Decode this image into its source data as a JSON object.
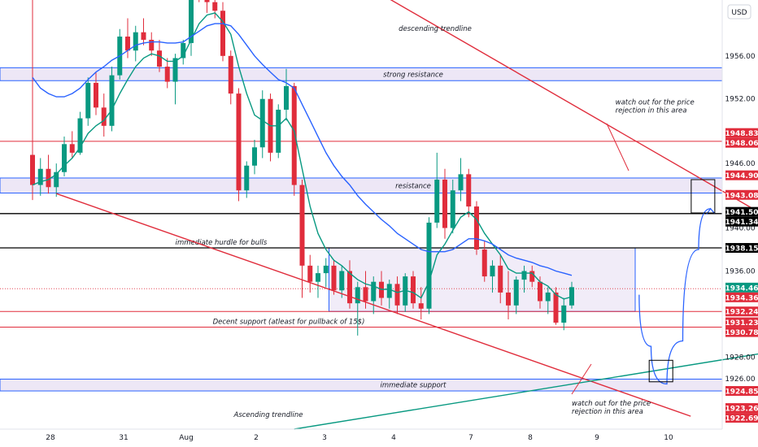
{
  "currency": "USD",
  "chart_data": {
    "type": "candlestick",
    "x_ticks": [
      "28",
      "31",
      "Aug",
      "2",
      "3",
      "4",
      "7",
      "8",
      "9",
      "10"
    ],
    "y_ticks": [
      "1956.00",
      "1952.00",
      "1948.00",
      "1946.00",
      "1940.00",
      "1936.00",
      "1928.00",
      "1926.00"
    ],
    "ylim": [
      1921.3,
      1961.2
    ],
    "grid": false,
    "candles": [
      {
        "o": 1946.8,
        "h": 1961.5,
        "l": 1942.6,
        "c": 1944.0
      },
      {
        "o": 1944.0,
        "h": 1946.5,
        "l": 1943.0,
        "c": 1945.5
      },
      {
        "o": 1945.5,
        "h": 1946.8,
        "l": 1943.2,
        "c": 1943.8
      },
      {
        "o": 1943.8,
        "h": 1946.0,
        "l": 1942.9,
        "c": 1945.2
      },
      {
        "o": 1945.2,
        "h": 1948.5,
        "l": 1944.8,
        "c": 1947.8
      },
      {
        "o": 1947.8,
        "h": 1949.0,
        "l": 1946.5,
        "c": 1947.0
      },
      {
        "o": 1947.0,
        "h": 1950.8,
        "l": 1946.8,
        "c": 1950.2
      },
      {
        "o": 1950.2,
        "h": 1954.0,
        "l": 1949.5,
        "c": 1953.5
      },
      {
        "o": 1953.5,
        "h": 1954.5,
        "l": 1950.5,
        "c": 1951.2
      },
      {
        "o": 1951.2,
        "h": 1952.5,
        "l": 1948.5,
        "c": 1949.5
      },
      {
        "o": 1949.5,
        "h": 1955.0,
        "l": 1949.0,
        "c": 1954.2
      },
      {
        "o": 1954.2,
        "h": 1958.5,
        "l": 1953.8,
        "c": 1957.8
      },
      {
        "o": 1957.8,
        "h": 1959.5,
        "l": 1955.8,
        "c": 1956.5
      },
      {
        "o": 1956.5,
        "h": 1958.8,
        "l": 1955.5,
        "c": 1958.2
      },
      {
        "o": 1958.2,
        "h": 1959.5,
        "l": 1957.0,
        "c": 1957.5
      },
      {
        "o": 1957.5,
        "h": 1958.2,
        "l": 1956.0,
        "c": 1956.5
      },
      {
        "o": 1956.5,
        "h": 1957.5,
        "l": 1954.5,
        "c": 1955.0
      },
      {
        "o": 1955.0,
        "h": 1955.8,
        "l": 1953.0,
        "c": 1953.6
      },
      {
        "o": 1953.6,
        "h": 1956.2,
        "l": 1951.5,
        "c": 1955.8
      },
      {
        "o": 1955.8,
        "h": 1957.5,
        "l": 1955.2,
        "c": 1957.2
      },
      {
        "o": 1957.2,
        "h": 1963.0,
        "l": 1956.0,
        "c": 1962.5
      },
      {
        "o": 1962.5,
        "h": 1964.0,
        "l": 1961.0,
        "c": 1961.5
      },
      {
        "o": 1961.5,
        "h": 1962.5,
        "l": 1960.0,
        "c": 1961.0
      },
      {
        "o": 1961.0,
        "h": 1962.5,
        "l": 1959.5,
        "c": 1960.2
      },
      {
        "o": 1960.2,
        "h": 1961.0,
        "l": 1955.5,
        "c": 1956.0
      },
      {
        "o": 1956.0,
        "h": 1956.5,
        "l": 1951.5,
        "c": 1952.5
      },
      {
        "o": 1952.5,
        "h": 1953.0,
        "l": 1942.5,
        "c": 1943.5
      },
      {
        "o": 1943.5,
        "h": 1946.2,
        "l": 1942.8,
        "c": 1945.8
      },
      {
        "o": 1945.8,
        "h": 1948.2,
        "l": 1945.0,
        "c": 1947.5
      },
      {
        "o": 1947.5,
        "h": 1952.8,
        "l": 1946.5,
        "c": 1952.0
      },
      {
        "o": 1952.0,
        "h": 1952.5,
        "l": 1946.2,
        "c": 1947.0
      },
      {
        "o": 1947.0,
        "h": 1951.5,
        "l": 1946.5,
        "c": 1951.0
      },
      {
        "o": 1951.0,
        "h": 1954.8,
        "l": 1950.0,
        "c": 1953.2
      },
      {
        "o": 1953.2,
        "h": 1953.5,
        "l": 1943.0,
        "c": 1944.0
      },
      {
        "o": 1944.0,
        "h": 1944.5,
        "l": 1933.5,
        "c": 1936.5
      },
      {
        "o": 1936.5,
        "h": 1937.5,
        "l": 1934.0,
        "c": 1935.0
      },
      {
        "o": 1935.0,
        "h": 1936.5,
        "l": 1933.5,
        "c": 1935.8
      },
      {
        "o": 1935.8,
        "h": 1937.2,
        "l": 1934.5,
        "c": 1936.5
      },
      {
        "o": 1936.5,
        "h": 1937.0,
        "l": 1933.8,
        "c": 1934.2
      },
      {
        "o": 1934.2,
        "h": 1936.5,
        "l": 1933.5,
        "c": 1936.0
      },
      {
        "o": 1936.0,
        "h": 1937.0,
        "l": 1932.5,
        "c": 1933.0
      },
      {
        "o": 1933.0,
        "h": 1935.0,
        "l": 1930.0,
        "c": 1934.5
      },
      {
        "o": 1934.5,
        "h": 1936.0,
        "l": 1932.5,
        "c": 1933.2
      },
      {
        "o": 1933.2,
        "h": 1935.5,
        "l": 1932.0,
        "c": 1935.0
      },
      {
        "o": 1935.0,
        "h": 1936.0,
        "l": 1932.8,
        "c": 1933.5
      },
      {
        "o": 1933.5,
        "h": 1935.2,
        "l": 1932.5,
        "c": 1934.8
      },
      {
        "o": 1934.8,
        "h": 1935.5,
        "l": 1932.0,
        "c": 1932.8
      },
      {
        "o": 1932.8,
        "h": 1935.8,
        "l": 1932.2,
        "c": 1935.5
      },
      {
        "o": 1935.5,
        "h": 1936.0,
        "l": 1932.5,
        "c": 1933.0
      },
      {
        "o": 1933.0,
        "h": 1934.5,
        "l": 1931.5,
        "c": 1932.5
      },
      {
        "o": 1932.5,
        "h": 1941.0,
        "l": 1932.0,
        "c": 1940.5
      },
      {
        "o": 1940.5,
        "h": 1947.0,
        "l": 1940.0,
        "c": 1944.5
      },
      {
        "o": 1944.5,
        "h": 1945.5,
        "l": 1939.0,
        "c": 1940.0
      },
      {
        "o": 1940.0,
        "h": 1944.5,
        "l": 1939.5,
        "c": 1943.5
      },
      {
        "o": 1943.5,
        "h": 1946.5,
        "l": 1942.5,
        "c": 1945.0
      },
      {
        "o": 1945.0,
        "h": 1945.5,
        "l": 1941.0,
        "c": 1942.0
      },
      {
        "o": 1942.0,
        "h": 1942.5,
        "l": 1937.5,
        "c": 1938.0
      },
      {
        "o": 1938.0,
        "h": 1938.8,
        "l": 1935.0,
        "c": 1935.5
      },
      {
        "o": 1935.5,
        "h": 1937.0,
        "l": 1934.0,
        "c": 1936.5
      },
      {
        "o": 1936.5,
        "h": 1937.5,
        "l": 1933.0,
        "c": 1934.0
      },
      {
        "o": 1934.0,
        "h": 1936.0,
        "l": 1931.5,
        "c": 1932.8
      },
      {
        "o": 1932.8,
        "h": 1935.5,
        "l": 1932.0,
        "c": 1935.2
      },
      {
        "o": 1935.2,
        "h": 1936.5,
        "l": 1934.0,
        "c": 1936.0
      },
      {
        "o": 1936.0,
        "h": 1936.5,
        "l": 1934.5,
        "c": 1935.0
      },
      {
        "o": 1935.0,
        "h": 1935.5,
        "l": 1932.5,
        "c": 1933.2
      },
      {
        "o": 1933.2,
        "h": 1934.5,
        "l": 1932.0,
        "c": 1934.0
      },
      {
        "o": 1934.0,
        "h": 1934.5,
        "l": 1931.0,
        "c": 1931.2
      },
      {
        "o": 1931.2,
        "h": 1933.5,
        "l": 1930.5,
        "c": 1932.8
      },
      {
        "o": 1932.8,
        "h": 1935.0,
        "l": 1932.5,
        "c": 1934.5
      }
    ],
    "series": [
      {
        "values": [
          1944.0,
          1944.3,
          1944.5,
          1945.0,
          1945.8,
          1946.5,
          1947.5,
          1948.8,
          1949.5,
          1950.0,
          1951.0,
          1952.5,
          1953.8,
          1955.0,
          1955.8,
          1956.2,
          1956.0,
          1955.5,
          1955.5,
          1956.0,
          1957.5,
          1959.0,
          1959.8,
          1960.0,
          1959.2,
          1958.0,
          1955.0,
          1952.5,
          1950.5,
          1950.0,
          1949.5,
          1949.5,
          1950.2,
          1949.0,
          1945.5,
          1942.0,
          1939.5,
          1938.0,
          1937.0,
          1936.5,
          1935.8,
          1935.2,
          1934.8,
          1934.6,
          1934.3,
          1934.3,
          1934.0,
          1934.2,
          1934.0,
          1933.5,
          1935.0,
          1937.5,
          1938.5,
          1939.8,
          1941.0,
          1941.5,
          1940.8,
          1939.5,
          1938.5,
          1937.5,
          1936.2,
          1935.8,
          1935.8,
          1935.8,
          1935.0,
          1934.6,
          1933.8,
          1933.4,
          1933.6
        ]
      },
      {
        "values": [
          1954.0,
          1953.0,
          1952.5,
          1952.2,
          1952.2,
          1952.5,
          1953.0,
          1953.8,
          1954.5,
          1955.0,
          1955.6,
          1956.0,
          1956.5,
          1957.0,
          1957.2,
          1957.3,
          1957.3,
          1957.2,
          1957.2,
          1957.3,
          1957.8,
          1958.3,
          1958.8,
          1959.0,
          1959.0,
          1958.8,
          1958.0,
          1957.0,
          1956.0,
          1955.2,
          1954.5,
          1953.8,
          1953.5,
          1953.0,
          1951.5,
          1950.0,
          1948.5,
          1947.0,
          1945.8,
          1944.8,
          1944.0,
          1943.0,
          1942.2,
          1941.5,
          1940.8,
          1940.2,
          1939.5,
          1939.0,
          1938.5,
          1938.0,
          1937.8,
          1937.8,
          1937.8,
          1938.0,
          1938.5,
          1939.0,
          1939.0,
          1938.8,
          1938.5,
          1938.0,
          1937.5,
          1937.2,
          1937.0,
          1936.8,
          1936.5,
          1936.3,
          1936.0,
          1935.8,
          1935.6
        ]
      }
    ],
    "zones": [
      {
        "label": "strong resistance",
        "y1": 1953.7,
        "y2": 1954.9
      },
      {
        "label": "resistance",
        "y1": 1943.25,
        "y2": 1944.65
      },
      {
        "label": "immediate support",
        "y1": 1924.85,
        "y2": 1925.95
      }
    ],
    "range_box": {
      "x_start": 38,
      "x_end": 76,
      "y1": 1932.24,
      "y2": 1938.15
    },
    "hlines": [
      {
        "y": 1948.06,
        "color": "#e02d3c"
      },
      {
        "y": 1941.34,
        "color": "#000000"
      },
      {
        "y": 1938.15,
        "color": "#000000",
        "label": "immediate hurdle for bulls"
      },
      {
        "y": 1932.24,
        "color": "#e02d3c"
      },
      {
        "y": 1930.78,
        "color": "#e02d3c",
        "label": "Decent support (atleast for pullback of 15$)"
      }
    ],
    "trendlines": [
      {
        "label": "descending trendline",
        "color": "#e02d3c",
        "points": [
          [
            41,
            1963.0
          ],
          [
            100,
            1937.9
          ]
        ]
      },
      {
        "label": "",
        "color": "#e02d3c",
        "points": [
          [
            3,
            1943.2
          ],
          [
            83,
            1922.5
          ]
        ]
      },
      {
        "label": "Ascending trendline",
        "color": "#089981",
        "points": [
          [
            33,
            1921.3
          ],
          [
            100,
            1929.3
          ]
        ]
      }
    ],
    "projection": [
      [
        76.5,
        1933.8
      ],
      [
        78,
        1929.0
      ],
      [
        80,
        1925.5
      ],
      [
        82,
        1929.5
      ],
      [
        84,
        1938.0
      ],
      [
        85.5,
        1941.8
      ]
    ],
    "target_boxes": [
      {
        "x": 79.2,
        "y1": 1925.7,
        "y2": 1927.7
      },
      {
        "x": 84.5,
        "y1": 1941.4,
        "y2": 1944.5
      }
    ],
    "annotations": [
      {
        "text": "watch out for the price",
        "text2": "rejection in this area",
        "x": 73.5,
        "y": 1951.5
      },
      {
        "text": "watch out for the price",
        "text2": "rejection in this area",
        "x": 68,
        "y": 1923.5
      }
    ],
    "price_labels": [
      {
        "text": "1948.83",
        "y": 1948.83,
        "bg": "#e02d3c"
      },
      {
        "text": "1948.06",
        "y": 1948.06,
        "bg": "#e02d3c"
      },
      {
        "text": "1944.90",
        "y": 1944.9,
        "bg": "#e02d3c"
      },
      {
        "text": "1943.08",
        "y": 1943.08,
        "bg": "#e02d3c"
      },
      {
        "text": "1941.50",
        "y": 1941.5,
        "bg": "#000000"
      },
      {
        "text": "1941.34",
        "y": 1941.34,
        "bg": "#000000"
      },
      {
        "text": "1938.15",
        "y": 1938.15,
        "bg": "#000000"
      },
      {
        "text": "1934.46",
        "y": 1934.46,
        "bg": "#089981"
      },
      {
        "text": "1934.36",
        "y": 1934.36,
        "bg": "#e02d3c"
      },
      {
        "text": "1932.24",
        "y": 1932.24,
        "bg": "#e02d3c"
      },
      {
        "text": "1931.23",
        "y": 1931.23,
        "bg": "#e02d3c"
      },
      {
        "text": "1930.78",
        "y": 1930.78,
        "bg": "#e02d3c"
      },
      {
        "text": "1924.85",
        "y": 1924.85,
        "bg": "#e02d3c"
      },
      {
        "text": "1923.26",
        "y": 1923.26,
        "bg": "#e02d3c"
      },
      {
        "text": "1922.69",
        "y": 1922.69,
        "bg": "#e02d3c"
      }
    ],
    "colors": {
      "up": "#089981",
      "down": "#e02d3c",
      "ma_fast": "#089981",
      "ma_slow": "#2962ff",
      "zone_fill": "#ede7f6",
      "zone_border": "#2962ff",
      "projection": "#2962ff"
    }
  }
}
